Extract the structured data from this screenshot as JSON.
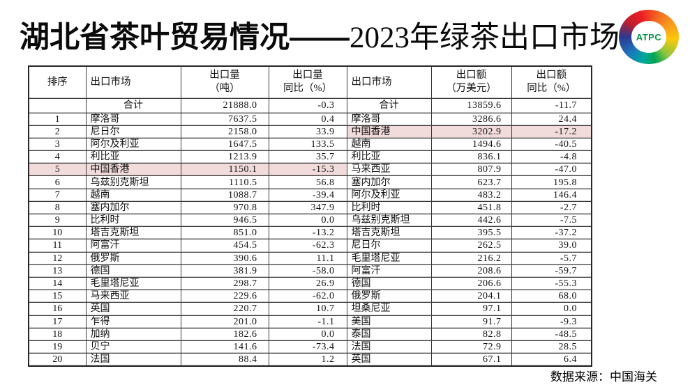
{
  "title": {
    "part1": "湖北省茶叶贸易情况——",
    "part2": "2023年绿茶出口市场"
  },
  "logo": {
    "label": "ATPC"
  },
  "colors": {
    "highlight": "#f2dcdb",
    "border": "#3a3a3a",
    "logo_text_green": "#009444"
  },
  "table": {
    "headers": [
      {
        "line1": "排序",
        "line2": ""
      },
      {
        "line1": "出口市场",
        "line2": ""
      },
      {
        "line1": "出口量",
        "line2": "（吨）"
      },
      {
        "line1": "出口量",
        "line2": "同比（%）"
      },
      {
        "line1": "出口市场",
        "line2": ""
      },
      {
        "line1": "出口额",
        "line2": "（万美元）"
      },
      {
        "line1": "出口额",
        "line2": "同比（%）"
      }
    ],
    "rows": [
      {
        "rank": "",
        "volume_market": "合计",
        "volume": "21888.0",
        "volume_yoy": "-0.3",
        "value_market": "合计",
        "value": "13859.6",
        "value_yoy": "-11.7",
        "is_total": true,
        "highlight_left": false,
        "highlight_right": false
      },
      {
        "rank": "1",
        "volume_market": "摩洛哥",
        "volume": "7637.5",
        "volume_yoy": "0.4",
        "value_market": "摩洛哥",
        "value": "3286.6",
        "value_yoy": "24.4",
        "is_total": false,
        "highlight_left": false,
        "highlight_right": false
      },
      {
        "rank": "2",
        "volume_market": "尼日尔",
        "volume": "2158.0",
        "volume_yoy": "33.9",
        "value_market": "中国香港",
        "value": "3202.9",
        "value_yoy": "-17.2",
        "is_total": false,
        "highlight_left": false,
        "highlight_right": true
      },
      {
        "rank": "3",
        "volume_market": "阿尔及利亚",
        "volume": "1647.5",
        "volume_yoy": "133.5",
        "value_market": "越南",
        "value": "1494.6",
        "value_yoy": "-40.5",
        "is_total": false,
        "highlight_left": false,
        "highlight_right": false
      },
      {
        "rank": "4",
        "volume_market": "利比亚",
        "volume": "1213.9",
        "volume_yoy": "35.7",
        "value_market": "利比亚",
        "value": "836.1",
        "value_yoy": "-4.8",
        "is_total": false,
        "highlight_left": false,
        "highlight_right": false
      },
      {
        "rank": "5",
        "volume_market": "中国香港",
        "volume": "1150.1",
        "volume_yoy": "-15.3",
        "value_market": "马来西亚",
        "value": "807.9",
        "value_yoy": "-47.0",
        "is_total": false,
        "highlight_left": true,
        "highlight_right": false
      },
      {
        "rank": "6",
        "volume_market": "乌兹别克斯坦",
        "volume": "1110.5",
        "volume_yoy": "56.8",
        "value_market": "塞内加尔",
        "value": "623.7",
        "value_yoy": "195.8",
        "is_total": false,
        "highlight_left": false,
        "highlight_right": false
      },
      {
        "rank": "7",
        "volume_market": "越南",
        "volume": "1088.7",
        "volume_yoy": "-39.4",
        "value_market": "阿尔及利亚",
        "value": "483.2",
        "value_yoy": "146.4",
        "is_total": false,
        "highlight_left": false,
        "highlight_right": false
      },
      {
        "rank": "8",
        "volume_market": "塞内加尔",
        "volume": "970.8",
        "volume_yoy": "347.9",
        "value_market": "比利时",
        "value": "451.8",
        "value_yoy": "-2.7",
        "is_total": false,
        "highlight_left": false,
        "highlight_right": false
      },
      {
        "rank": "9",
        "volume_market": "比利时",
        "volume": "946.5",
        "volume_yoy": "0.0",
        "value_market": "乌兹别克斯坦",
        "value": "442.6",
        "value_yoy": "-7.5",
        "is_total": false,
        "highlight_left": false,
        "highlight_right": false
      },
      {
        "rank": "10",
        "volume_market": "塔吉克斯坦",
        "volume": "851.0",
        "volume_yoy": "-13.2",
        "value_market": "塔吉克斯坦",
        "value": "395.5",
        "value_yoy": "-37.2",
        "is_total": false,
        "highlight_left": false,
        "highlight_right": false
      },
      {
        "rank": "11",
        "volume_market": "阿富汗",
        "volume": "454.5",
        "volume_yoy": "-62.3",
        "value_market": "尼日尔",
        "value": "262.5",
        "value_yoy": "39.0",
        "is_total": false,
        "highlight_left": false,
        "highlight_right": false
      },
      {
        "rank": "12",
        "volume_market": "俄罗斯",
        "volume": "390.6",
        "volume_yoy": "11.1",
        "value_market": "毛里塔尼亚",
        "value": "216.2",
        "value_yoy": "-5.7",
        "is_total": false,
        "highlight_left": false,
        "highlight_right": false
      },
      {
        "rank": "13",
        "volume_market": "德国",
        "volume": "381.9",
        "volume_yoy": "-58.0",
        "value_market": "阿富汗",
        "value": "208.6",
        "value_yoy": "-59.7",
        "is_total": false,
        "highlight_left": false,
        "highlight_right": false
      },
      {
        "rank": "14",
        "volume_market": "毛里塔尼亚",
        "volume": "298.7",
        "volume_yoy": "26.9",
        "value_market": "德国",
        "value": "206.6",
        "value_yoy": "-55.3",
        "is_total": false,
        "highlight_left": false,
        "highlight_right": false
      },
      {
        "rank": "15",
        "volume_market": "马来西亚",
        "volume": "229.6",
        "volume_yoy": "-62.0",
        "value_market": "俄罗斯",
        "value": "204.1",
        "value_yoy": "68.0",
        "is_total": false,
        "highlight_left": false,
        "highlight_right": false
      },
      {
        "rank": "16",
        "volume_market": "英国",
        "volume": "220.7",
        "volume_yoy": "10.7",
        "value_market": "坦桑尼亚",
        "value": "97.1",
        "value_yoy": "0.0",
        "is_total": false,
        "highlight_left": false,
        "highlight_right": false
      },
      {
        "rank": "17",
        "volume_market": "乍得",
        "volume": "201.0",
        "volume_yoy": "-1.1",
        "value_market": "美国",
        "value": "91.7",
        "value_yoy": "-9.3",
        "is_total": false,
        "highlight_left": false,
        "highlight_right": false
      },
      {
        "rank": "18",
        "volume_market": "加纳",
        "volume": "182.6",
        "volume_yoy": "0.0",
        "value_market": "泰国",
        "value": "82.8",
        "value_yoy": "-48.5",
        "is_total": false,
        "highlight_left": false,
        "highlight_right": false
      },
      {
        "rank": "19",
        "volume_market": "贝宁",
        "volume": "141.6",
        "volume_yoy": "-73.4",
        "value_market": "法国",
        "value": "72.9",
        "value_yoy": "28.5",
        "is_total": false,
        "highlight_left": false,
        "highlight_right": false
      },
      {
        "rank": "20",
        "volume_market": "法国",
        "volume": "88.4",
        "volume_yoy": "1.2",
        "value_market": "英国",
        "value": "67.1",
        "value_yoy": "6.4",
        "is_total": false,
        "highlight_left": false,
        "highlight_right": false
      }
    ]
  },
  "footer": {
    "source": "数据来源：中国海关"
  }
}
